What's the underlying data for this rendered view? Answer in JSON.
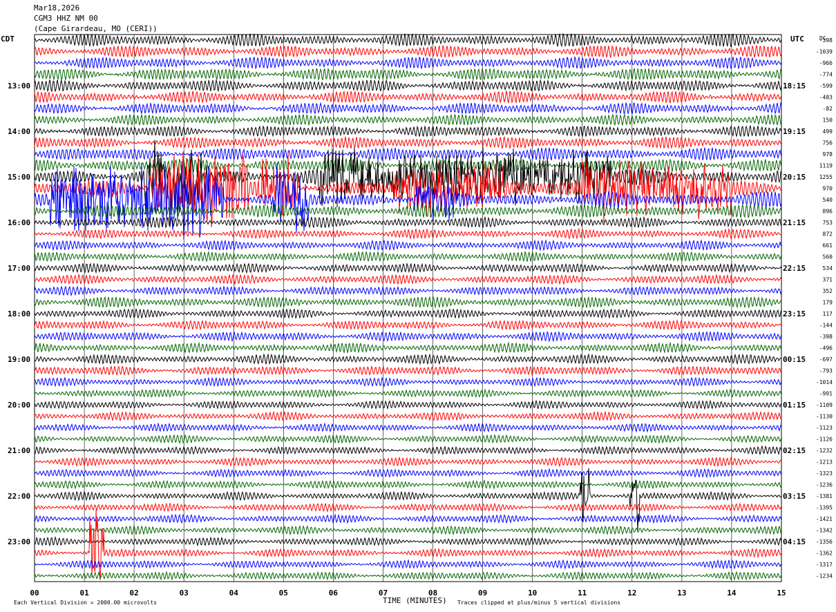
{
  "header": {
    "date": "Mar18,2026",
    "station": "CGM3 HHZ NM 00",
    "location": "(Cape Girardeau, MO (CERI))"
  },
  "colors": {
    "trace_cycle": [
      "#000000",
      "#ff0000",
      "#0000ff",
      "#006400"
    ],
    "grid": "#000000",
    "background": "#ffffff"
  },
  "footer": {
    "vertical_division": "Each Vertical Division = 2000.00 microvolts",
    "xlabel": "TIME (MINUTES)",
    "clipping_note": "Traces clipped at plus/minus 5 vertical divisions"
  },
  "chart_data": {
    "type": "line",
    "title": "",
    "left_axis_label": "CDT",
    "right_axis_label": "UTC",
    "dc_label": "DC",
    "xlabel": "TIME (MINUTES)",
    "x_ticks": [
      "00",
      "01",
      "02",
      "03",
      "04",
      "05",
      "06",
      "07",
      "08",
      "09",
      "10",
      "11",
      "12",
      "13",
      "14",
      "15"
    ],
    "xlim": [
      0,
      15
    ],
    "traces_per_hour": 4,
    "trace_minutes": 15,
    "cdt_hour_labels": [
      {
        "row": 4,
        "label": "13:00"
      },
      {
        "row": 8,
        "label": "14:00"
      },
      {
        "row": 12,
        "label": "15:00"
      },
      {
        "row": 16,
        "label": "16:00"
      },
      {
        "row": 20,
        "label": "17:00"
      },
      {
        "row": 24,
        "label": "18:00"
      },
      {
        "row": 28,
        "label": "19:00"
      },
      {
        "row": 32,
        "label": "20:00"
      },
      {
        "row": 36,
        "label": "21:00"
      },
      {
        "row": 40,
        "label": "22:00"
      },
      {
        "row": 44,
        "label": "23:00"
      }
    ],
    "utc_hour_labels": [
      {
        "row": 4,
        "label": "18:15"
      },
      {
        "row": 8,
        "label": "19:15"
      },
      {
        "row": 12,
        "label": "20:15"
      },
      {
        "row": 16,
        "label": "21:15"
      },
      {
        "row": 20,
        "label": "22:15"
      },
      {
        "row": 24,
        "label": "23:15"
      },
      {
        "row": 28,
        "label": "00:15"
      },
      {
        "row": 32,
        "label": "01:15"
      },
      {
        "row": 36,
        "label": "02:15"
      },
      {
        "row": 40,
        "label": "03:15"
      },
      {
        "row": 44,
        "label": "04:15"
      }
    ],
    "dc_offsets": [
      -398,
      -1039,
      -966,
      -774,
      -599,
      -483,
      -82,
      150,
      499,
      756,
      978,
      1119,
      1255,
      970,
      540,
      896,
      753,
      872,
      661,
      560,
      534,
      371,
      352,
      179,
      117,
      -144,
      -398,
      -496,
      -697,
      -793,
      -1014,
      -991,
      -1109,
      -1130,
      -1123,
      -1126,
      -1232,
      -1213,
      -1323,
      -1236,
      -1381,
      -1395,
      -1421,
      -1342,
      -1356,
      -1362,
      -1317,
      -1234
    ],
    "trace_amplitude": [
      0.55,
      0.5,
      0.5,
      0.55,
      0.5,
      0.5,
      0.5,
      0.45,
      0.5,
      0.5,
      0.55,
      0.6,
      0.7,
      0.75,
      0.7,
      0.55,
      0.45,
      0.4,
      0.4,
      0.4,
      0.4,
      0.4,
      0.4,
      0.45,
      0.4,
      0.4,
      0.4,
      0.4,
      0.4,
      0.4,
      0.35,
      0.35,
      0.35,
      0.35,
      0.35,
      0.35,
      0.35,
      0.35,
      0.35,
      0.35,
      0.35,
      0.35,
      0.35,
      0.35,
      0.35,
      0.35,
      0.35,
      0.35
    ],
    "high_activity": [
      {
        "row": 12,
        "start_min": 2.2,
        "end_min": 3.5,
        "level": 3.2
      },
      {
        "row": 12,
        "start_min": 5.7,
        "end_min": 11.6,
        "level": 2.6
      },
      {
        "row": 13,
        "start_min": 2.3,
        "end_min": 4.3,
        "level": 3.5
      },
      {
        "row": 13,
        "start_min": 4.5,
        "end_min": 5.3,
        "level": 3.0
      },
      {
        "row": 13,
        "start_min": 7.2,
        "end_min": 9.5,
        "level": 2.5
      },
      {
        "row": 13,
        "start_min": 11.0,
        "end_min": 14.0,
        "level": 2.8
      },
      {
        "row": 14,
        "start_min": 0.3,
        "end_min": 3.8,
        "level": 3.6
      },
      {
        "row": 14,
        "start_min": 4.8,
        "end_min": 5.5,
        "level": 3.0
      },
      {
        "row": 14,
        "start_min": 7.6,
        "end_min": 8.5,
        "level": 2.0
      },
      {
        "row": 45,
        "start_min": 1.1,
        "end_min": 1.4,
        "level": 4.0
      },
      {
        "row": 40,
        "start_min": 10.95,
        "end_min": 11.15,
        "level": 3.5
      },
      {
        "row": 40,
        "start_min": 11.95,
        "end_min": 12.15,
        "level": 3.0
      }
    ]
  }
}
